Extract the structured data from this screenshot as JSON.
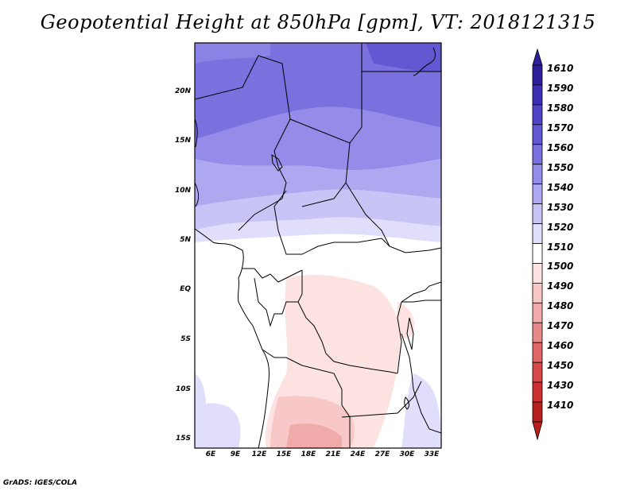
{
  "title": "Geopotential Height at 850hPa [gpm], VT: 2018121315",
  "credit": "GrADS: IGES/COLA",
  "y_ticks": [
    "20N",
    "15N",
    "10N",
    "5N",
    "EQ",
    "5S",
    "10S",
    "15S"
  ],
  "x_ticks": [
    "6E",
    "9E",
    "12E",
    "15E",
    "18E",
    "21E",
    "24E",
    "27E",
    "30E",
    "33E"
  ],
  "colorbar": {
    "labels": [
      "1610",
      "1590",
      "1580",
      "1570",
      "1560",
      "1550",
      "1540",
      "1530",
      "1520",
      "1510",
      "1500",
      "1490",
      "1480",
      "1470",
      "1460",
      "1450",
      "1430",
      "1410"
    ],
    "colors": [
      "#2e1e9a",
      "#3d30b6",
      "#4f44c6",
      "#6258d2",
      "#7a70de",
      "#948ce8",
      "#aea8f0",
      "#c8c4f6",
      "#e0defa",
      "#ffffff",
      "#fde2e2",
      "#f8c8c8",
      "#f0aaaa",
      "#e88888",
      "#e06666",
      "#d84848",
      "#cc3030",
      "#b82020"
    ]
  },
  "map": {
    "region": "Central Africa",
    "lon_range": [
      4,
      34
    ],
    "lat_range": [
      -16,
      25
    ]
  }
}
